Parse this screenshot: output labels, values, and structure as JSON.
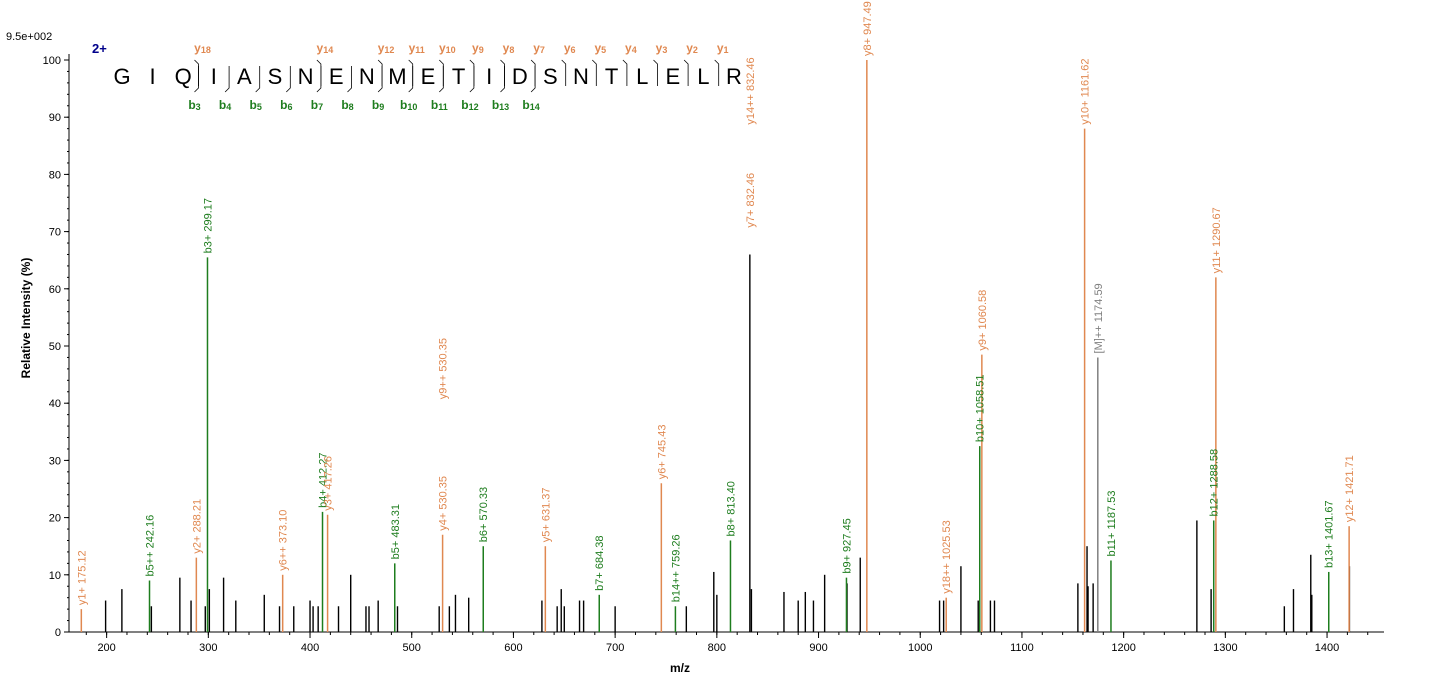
{
  "colors": {
    "y": "#e08850",
    "b": "#1e7d1e",
    "precursor": "#808080",
    "other": "#000000",
    "charge": "#00008b"
  },
  "chart_data": {
    "type": "bar",
    "title": "",
    "max_intensity_label": "9.5e+002",
    "charge_label": "2+",
    "xlabel": "m/z",
    "ylabel": "Relative   Intensity (%)",
    "xlim": [
      163,
      1456
    ],
    "ylim": [
      0,
      100
    ],
    "xticks": [
      200,
      300,
      400,
      500,
      600,
      700,
      800,
      900,
      1000,
      1100,
      1200,
      1300,
      1400
    ],
    "yticks": [
      0,
      10,
      20,
      30,
      40,
      50,
      60,
      70,
      80,
      90,
      100
    ],
    "sequence": [
      "G",
      "I",
      "Q",
      "I",
      "A",
      "S",
      "N",
      "E",
      "N",
      "M",
      "E",
      "T",
      "I",
      "D",
      "S",
      "N",
      "T",
      "L",
      "E",
      "L",
      "R"
    ],
    "y_ion_labels": [
      {
        "n": 18,
        "after": 2
      },
      {
        "n": 14,
        "after": 6
      },
      {
        "n": 12,
        "after": 8
      },
      {
        "n": 11,
        "after": 9
      },
      {
        "n": 10,
        "after": 10
      },
      {
        "n": 9,
        "after": 11
      },
      {
        "n": 8,
        "after": 12
      },
      {
        "n": 7,
        "after": 13
      },
      {
        "n": 6,
        "after": 14
      },
      {
        "n": 5,
        "after": 15
      },
      {
        "n": 4,
        "after": 16
      },
      {
        "n": 3,
        "after": 17
      },
      {
        "n": 2,
        "after": 18
      },
      {
        "n": 1,
        "after": 19
      }
    ],
    "b_ion_labels": [
      {
        "n": 3,
        "after": 2
      },
      {
        "n": 4,
        "after": 3
      },
      {
        "n": 5,
        "after": 4
      },
      {
        "n": 6,
        "after": 5
      },
      {
        "n": 7,
        "after": 6
      },
      {
        "n": 8,
        "after": 7
      },
      {
        "n": 9,
        "after": 8
      },
      {
        "n": 10,
        "after": 9
      },
      {
        "n": 11,
        "after": 10
      },
      {
        "n": 12,
        "after": 11
      },
      {
        "n": 13,
        "after": 12
      },
      {
        "n": 14,
        "after": 13
      }
    ],
    "annotated_peaks": [
      {
        "mz": 175.12,
        "y": 4,
        "label": "y1+ 175.12",
        "kind": "y"
      },
      {
        "mz": 242.16,
        "y": 9,
        "label": "b5++ 242.16",
        "kind": "b"
      },
      {
        "mz": 288.21,
        "y": 13,
        "label": "y2+ 288.21",
        "kind": "y"
      },
      {
        "mz": 299.17,
        "y": 65.5,
        "label": "b3+ 299.17",
        "kind": "b"
      },
      {
        "mz": 373.1,
        "y": 10,
        "label": "y6++ 373.10",
        "kind": "y"
      },
      {
        "mz": 412.27,
        "y": 21,
        "label": "b4+ 412.27",
        "kind": "b"
      },
      {
        "mz": 417.26,
        "y": 20.5,
        "label": "y3+ 417.26",
        "kind": "y"
      },
      {
        "mz": 483.31,
        "y": 12,
        "label": "b5+ 483.31",
        "kind": "b"
      },
      {
        "mz": 530.35,
        "y": 17,
        "label": "y4+ 530.35",
        "kind": "y"
      },
      {
        "mz": 570.33,
        "y": 15,
        "label": "b6+ 570.33",
        "kind": "b"
      },
      {
        "mz": 631.37,
        "y": 15,
        "label": "y5+ 631.37",
        "kind": "y"
      },
      {
        "mz": 684.38,
        "y": 6.5,
        "label": "b7+ 684.38",
        "kind": "b"
      },
      {
        "mz": 745.43,
        "y": 26,
        "label": "y6+ 745.43",
        "kind": "y"
      },
      {
        "mz": 759.26,
        "y": 4.5,
        "label": "b14++ 759.26",
        "kind": "b"
      },
      {
        "mz": 813.4,
        "y": 16,
        "label": "b8+ 813.40",
        "kind": "b"
      },
      {
        "mz": 927.45,
        "y": 9.5,
        "label": "b9+ 927.45",
        "kind": "b"
      },
      {
        "mz": 947.49,
        "y": 100,
        "label": "y8+ 947.49",
        "kind": "y"
      },
      {
        "mz": 1025.53,
        "y": 6,
        "label": "y18++ 1025.53",
        "kind": "y"
      },
      {
        "mz": 1058.51,
        "y": 32.5,
        "label": "b10+ 1058.51",
        "kind": "b"
      },
      {
        "mz": 1060.58,
        "y": 48.5,
        "label": "y9+ 1060.58",
        "kind": "y"
      },
      {
        "mz": 1161.62,
        "y": 88,
        "label": "y10+ 1161.62",
        "kind": "y"
      },
      {
        "mz": 1174.59,
        "y": 48,
        "label": "[M]++ 1174.59",
        "kind": "precursor"
      },
      {
        "mz": 1187.53,
        "y": 12.5,
        "label": "b11+ 1187.53",
        "kind": "b"
      },
      {
        "mz": 1288.58,
        "y": 19.5,
        "label": "b12+ 1288.58",
        "kind": "b"
      },
      {
        "mz": 1290.67,
        "y": 62,
        "label": "y11+ 1290.67",
        "kind": "y"
      },
      {
        "mz": 1401.67,
        "y": 10.5,
        "label": "b13+ 1401.67",
        "kind": "b"
      },
      {
        "mz": 1421.71,
        "y": 18.5,
        "label": "y12+ 1421.71",
        "kind": "y"
      }
    ],
    "overlay_labels": [
      {
        "mz": 530.35,
        "y": 40,
        "label": "y9++ 530.35",
        "kind": "y"
      },
      {
        "mz": 832.46,
        "y": 70,
        "label": "y7+ 832.46",
        "kind": "y"
      },
      {
        "mz": 832.46,
        "y": 88,
        "label": "y14++ 832.46",
        "kind": "y"
      }
    ],
    "unannotated_peaks": [
      {
        "mz": 199,
        "y": 5.5
      },
      {
        "mz": 215,
        "y": 7.5
      },
      {
        "mz": 244,
        "y": 4.5
      },
      {
        "mz": 272,
        "y": 9.5
      },
      {
        "mz": 283,
        "y": 5.5
      },
      {
        "mz": 297,
        "y": 4.5
      },
      {
        "mz": 301,
        "y": 7.5
      },
      {
        "mz": 315,
        "y": 9.5
      },
      {
        "mz": 327,
        "y": 5.5
      },
      {
        "mz": 355,
        "y": 6.5
      },
      {
        "mz": 370,
        "y": 4.5
      },
      {
        "mz": 384,
        "y": 4.5
      },
      {
        "mz": 400,
        "y": 5.5
      },
      {
        "mz": 403,
        "y": 4.5
      },
      {
        "mz": 408,
        "y": 4.5
      },
      {
        "mz": 428,
        "y": 4.5
      },
      {
        "mz": 440,
        "y": 10
      },
      {
        "mz": 455,
        "y": 4.5
      },
      {
        "mz": 458,
        "y": 4.5
      },
      {
        "mz": 467,
        "y": 5.5
      },
      {
        "mz": 486,
        "y": 4.5
      },
      {
        "mz": 527,
        "y": 4.5
      },
      {
        "mz": 537,
        "y": 4.5
      },
      {
        "mz": 543,
        "y": 6.5
      },
      {
        "mz": 556,
        "y": 6
      },
      {
        "mz": 628,
        "y": 5.5
      },
      {
        "mz": 643,
        "y": 4.5
      },
      {
        "mz": 647,
        "y": 7.5
      },
      {
        "mz": 650,
        "y": 4.5
      },
      {
        "mz": 665,
        "y": 5.5
      },
      {
        "mz": 669,
        "y": 5.5
      },
      {
        "mz": 700,
        "y": 4.5
      },
      {
        "mz": 770,
        "y": 4.5
      },
      {
        "mz": 797,
        "y": 10.5
      },
      {
        "mz": 800,
        "y": 6.5
      },
      {
        "mz": 832.46,
        "y": 66
      },
      {
        "mz": 834,
        "y": 7.5
      },
      {
        "mz": 866,
        "y": 7
      },
      {
        "mz": 880,
        "y": 5.5
      },
      {
        "mz": 887,
        "y": 7
      },
      {
        "mz": 895,
        "y": 5.5
      },
      {
        "mz": 906,
        "y": 10
      },
      {
        "mz": 928,
        "y": 8.5
      },
      {
        "mz": 941,
        "y": 13
      },
      {
        "mz": 1019,
        "y": 5.5
      },
      {
        "mz": 1023,
        "y": 5.5
      },
      {
        "mz": 1040,
        "y": 11.5
      },
      {
        "mz": 1057,
        "y": 5.5
      },
      {
        "mz": 1069,
        "y": 5.5
      },
      {
        "mz": 1073,
        "y": 5.5
      },
      {
        "mz": 1155,
        "y": 8.5
      },
      {
        "mz": 1164,
        "y": 15
      },
      {
        "mz": 1165,
        "y": 8
      },
      {
        "mz": 1170,
        "y": 8.5
      },
      {
        "mz": 1272,
        "y": 19.5
      },
      {
        "mz": 1286,
        "y": 7.5
      },
      {
        "mz": 1358,
        "y": 4.5
      },
      {
        "mz": 1367,
        "y": 7.5
      },
      {
        "mz": 1384,
        "y": 13.5
      },
      {
        "mz": 1385,
        "y": 6.5
      },
      {
        "mz": 1422,
        "y": 11.5
      }
    ]
  }
}
